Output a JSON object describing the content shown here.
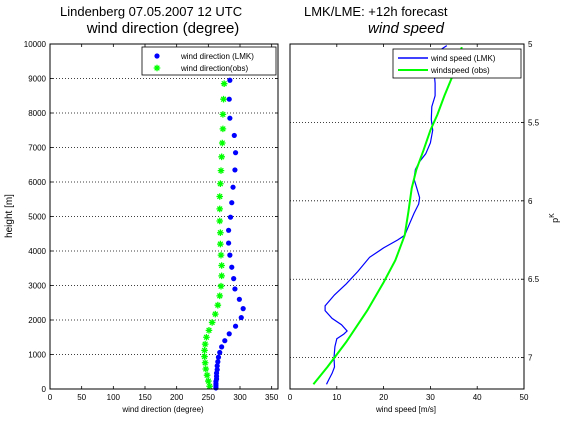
{
  "header": {
    "left_title": "Lindenberg 07.05.2007  12 UTC",
    "right_title": "LMK/LME: +12h forecast"
  },
  "chart_data": [
    {
      "type": "scatter",
      "title": "wind direction (degree)",
      "xlabel": "wind direction (degree)",
      "ylabel": "height [m]",
      "xlim": [
        0,
        360
      ],
      "ylim": [
        0,
        10000
      ],
      "xticks": [
        0,
        50,
        100,
        150,
        200,
        250,
        300,
        350
      ],
      "yticks": [
        0,
        1000,
        2000,
        3000,
        4000,
        5000,
        6000,
        7000,
        8000,
        9000,
        10000
      ],
      "grid": "horizontal-dotted",
      "legend": "top-right",
      "series": [
        {
          "name": "wind direction (LMK)",
          "color": "#0000ff",
          "marker": "dot",
          "points": [
            [
              262,
              30
            ],
            [
              262,
              90
            ],
            [
              262,
              150
            ],
            [
              262,
              220
            ],
            [
              263,
              290
            ],
            [
              263,
              370
            ],
            [
              263,
              460
            ],
            [
              264,
              560
            ],
            [
              264,
              670
            ],
            [
              265,
              790
            ],
            [
              266,
              920
            ],
            [
              268,
              1060
            ],
            [
              271,
              1220
            ],
            [
              276,
              1400
            ],
            [
              283,
              1600
            ],
            [
              293,
              1820
            ],
            [
              302,
              2070
            ],
            [
              305,
              2330
            ],
            [
              299,
              2600
            ],
            [
              292,
              2900
            ],
            [
              290,
              3200
            ],
            [
              287,
              3530
            ],
            [
              284,
              3880
            ],
            [
              282,
              4230
            ],
            [
              282,
              4600
            ],
            [
              285,
              4980
            ],
            [
              287,
              5400
            ],
            [
              289,
              5850
            ],
            [
              292,
              6350
            ],
            [
              293,
              6850
            ],
            [
              291,
              7350
            ],
            [
              284,
              7850
            ],
            [
              283,
              8400
            ],
            [
              284,
              8950
            ]
          ]
        },
        {
          "name": "wind direction(obs)",
          "color": "#00ff00",
          "marker": "star",
          "points": [
            [
              252,
              80
            ],
            [
              250,
              230
            ],
            [
              248,
              400
            ],
            [
              246,
              580
            ],
            [
              245,
              760
            ],
            [
              244,
              940
            ],
            [
              244,
              1120
            ],
            [
              245,
              1300
            ],
            [
              247,
              1500
            ],
            [
              251,
              1700
            ],
            [
              256,
              1930
            ],
            [
              261,
              2170
            ],
            [
              265,
              2430
            ],
            [
              268,
              2700
            ],
            [
              270,
              2980
            ],
            [
              271,
              3280
            ],
            [
              271,
              3580
            ],
            [
              270,
              3880
            ],
            [
              269,
              4200
            ],
            [
              269,
              4530
            ],
            [
              268,
              4870
            ],
            [
              268,
              5220
            ],
            [
              268,
              5580
            ],
            [
              269,
              5950
            ],
            [
              270,
              6330
            ],
            [
              271,
              6730
            ],
            [
              272,
              7130
            ],
            [
              273,
              7540
            ],
            [
              273,
              7960
            ],
            [
              274,
              8400
            ],
            [
              275,
              8850
            ]
          ]
        }
      ]
    },
    {
      "type": "line",
      "title": "wind speed",
      "xlabel": "wind speed [m/s]",
      "ylabel": "p^K",
      "xlim": [
        0,
        50
      ],
      "ylim": [
        5,
        7.2
      ],
      "xticks": [
        0,
        10,
        20,
        30,
        40,
        50
      ],
      "yticks": [
        5,
        5.5,
        6,
        6.5,
        7
      ],
      "yticklabels": [
        "5",
        "5.5",
        "6",
        "6.5",
        "7"
      ],
      "y_reversed": true,
      "grid": "horizontal-dotted",
      "legend": "top-right",
      "series": [
        {
          "name": "wind speed (LMK)",
          "color": "#0000ff",
          "points": [
            [
              7.8,
              7.17
            ],
            [
              8.3,
              7.14
            ],
            [
              9,
              7.1
            ],
            [
              9.5,
              7.06
            ],
            [
              9.4,
              7.0
            ],
            [
              9.6,
              6.93
            ],
            [
              10,
              6.88
            ],
            [
              11.5,
              6.85
            ],
            [
              12.2,
              6.83
            ],
            [
              11,
              6.79
            ],
            [
              9,
              6.75
            ],
            [
              7.5,
              6.7
            ],
            [
              7.5,
              6.67
            ],
            [
              9.5,
              6.6
            ],
            [
              12,
              6.53
            ],
            [
              14.5,
              6.45
            ],
            [
              17,
              6.36
            ],
            [
              20,
              6.3
            ],
            [
              23,
              6.25
            ],
            [
              24.5,
              6.22
            ],
            [
              25.5,
              6.15
            ],
            [
              26.5,
              6.08
            ],
            [
              27.5,
              6.02
            ],
            [
              27.7,
              5.98
            ],
            [
              27.2,
              5.93
            ],
            [
              26.5,
              5.86
            ],
            [
              26.8,
              5.8
            ],
            [
              27.7,
              5.75
            ],
            [
              29,
              5.7
            ],
            [
              30,
              5.63
            ],
            [
              30.5,
              5.55
            ],
            [
              30.2,
              5.48
            ],
            [
              30.3,
              5.4
            ],
            [
              31,
              5.33
            ],
            [
              31,
              5.25
            ],
            [
              30.8,
              5.18
            ],
            [
              31,
              5.12
            ],
            [
              31.5,
              5.07
            ],
            [
              32.5,
              5.03
            ],
            [
              33.5,
              5.01
            ]
          ]
        },
        {
          "name": "windspeed (obs)",
          "color": "#00ff00",
          "points": [
            [
              5,
              7.17
            ],
            [
              8,
              7.06
            ],
            [
              12,
              6.9
            ],
            [
              16.5,
              6.7
            ],
            [
              20,
              6.52
            ],
            [
              22.5,
              6.38
            ],
            [
              24.5,
              6.22
            ],
            [
              25.3,
              6.07
            ],
            [
              26,
              5.92
            ],
            [
              27,
              5.8
            ],
            [
              28.5,
              5.68
            ],
            [
              30,
              5.55
            ],
            [
              31.5,
              5.45
            ],
            [
              33,
              5.33
            ],
            [
              34.5,
              5.22
            ],
            [
              35.7,
              5.12
            ],
            [
              36.7,
              5.02
            ]
          ]
        }
      ]
    }
  ]
}
